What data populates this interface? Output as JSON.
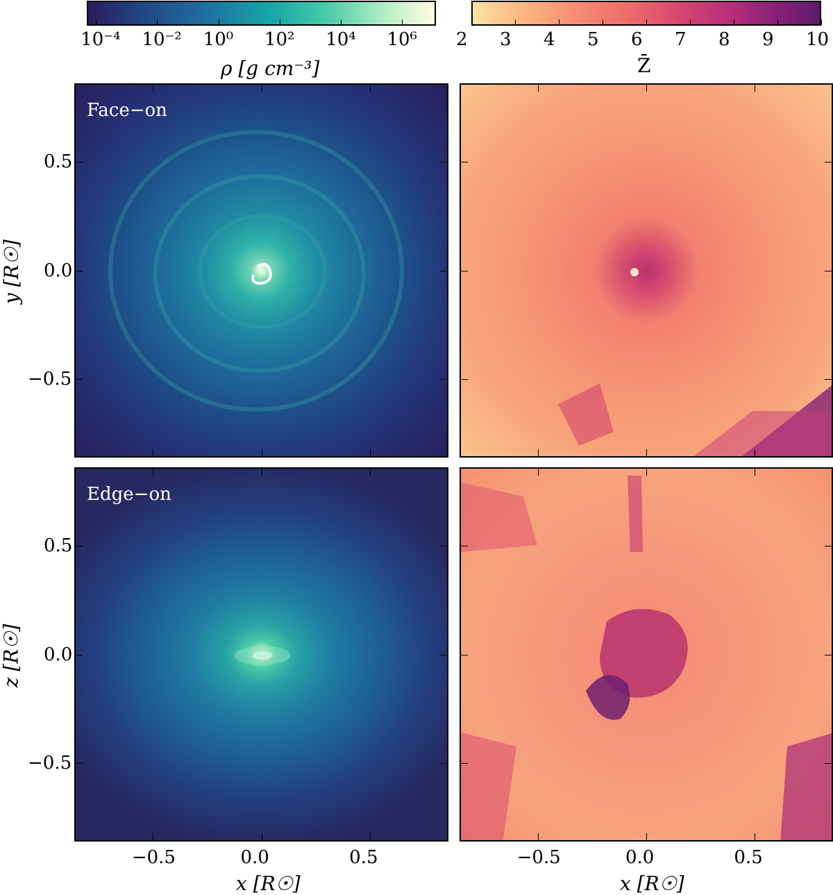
{
  "colorbars": {
    "density": {
      "label": "ρ [g cm⁻³]",
      "ticks": [
        "10⁻⁴",
        "10⁻²",
        "10⁰",
        "10²",
        "10⁴",
        "10⁶"
      ],
      "tick_values": [
        -4,
        -2,
        0,
        2,
        4,
        6
      ],
      "range": [
        -4.3,
        7.1
      ],
      "colormap": "blue-green-white",
      "colors": [
        "#2a1c5c",
        "#1f4e8c",
        "#1a8aa0",
        "#2cc1a4",
        "#b7efc5",
        "#fffde4"
      ]
    },
    "metallicity": {
      "label": "Z̄",
      "ticks": [
        "2",
        "3",
        "4",
        "5",
        "6",
        "7",
        "8",
        "9",
        "10"
      ],
      "tick_values": [
        2,
        3,
        4,
        5,
        6,
        7,
        8,
        9,
        10
      ],
      "range": [
        2,
        10
      ],
      "colormap": "magma-like",
      "colors": [
        "#fde2a3",
        "#f9a97a",
        "#f07a6e",
        "#d6466f",
        "#a6287a",
        "#5e1a6b"
      ]
    }
  },
  "panels": {
    "top_left": {
      "label": "Face−on"
    },
    "bottom_left": {
      "label": "Edge−on"
    }
  },
  "axes": {
    "x_ticks": [
      "−0.5",
      "0.0",
      "0.5"
    ],
    "y_ticks": [
      "0.5",
      "0.0",
      "−0.5"
    ],
    "x_label": "x [R☉]",
    "y_label_top": "y [R☉]",
    "y_label_bottom": "z [R☉]",
    "range": [
      -0.86,
      0.86
    ]
  }
}
